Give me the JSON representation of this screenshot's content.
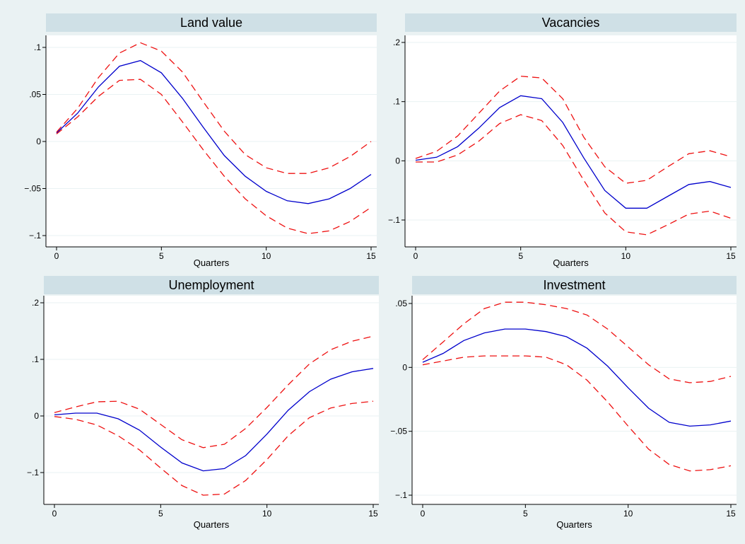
{
  "chart_data": [
    {
      "type": "line",
      "title": "Land value",
      "xlabel": "Quarters",
      "ylabel": "",
      "x": [
        0,
        1,
        2,
        3,
        4,
        5,
        6,
        7,
        8,
        9,
        10,
        11,
        12,
        13,
        14,
        15
      ],
      "xlim": [
        0,
        15
      ],
      "ylim": [
        -0.1,
        0.1
      ],
      "xticks": [
        0,
        5,
        10,
        15
      ],
      "xtick_labels": [
        "0",
        "5",
        "10",
        "15"
      ],
      "yticks": [
        -0.1,
        -0.05,
        0,
        0.05,
        0.1
      ],
      "ytick_labels": [
        "−.1",
        "−.05",
        "0",
        ".05",
        ".1"
      ],
      "grid": true,
      "series": [
        {
          "role": "estimate",
          "color": "#0000cc",
          "dash": "solid",
          "values": [
            0.009,
            0.03,
            0.058,
            0.08,
            0.086,
            0.073,
            0.046,
            0.015,
            -0.015,
            -0.037,
            -0.053,
            -0.063,
            -0.066,
            -0.061,
            -0.05,
            -0.035
          ]
        },
        {
          "role": "upper",
          "color": "#ee1111",
          "dash": "dashed",
          "values": [
            0.01,
            0.035,
            0.068,
            0.094,
            0.105,
            0.096,
            0.074,
            0.042,
            0.011,
            -0.014,
            -0.028,
            -0.034,
            -0.034,
            -0.028,
            -0.016,
            0
          ]
        },
        {
          "role": "lower",
          "color": "#ee1111",
          "dash": "dashed",
          "values": [
            0.008,
            0.026,
            0.048,
            0.065,
            0.066,
            0.05,
            0.021,
            -0.009,
            -0.037,
            -0.061,
            -0.079,
            -0.092,
            -0.098,
            -0.095,
            -0.085,
            -0.07
          ]
        }
      ]
    },
    {
      "type": "line",
      "title": "Vacancies",
      "xlabel": "Quarters",
      "ylabel": "",
      "x": [
        0,
        1,
        2,
        3,
        4,
        5,
        6,
        7,
        8,
        9,
        10,
        11,
        12,
        13,
        14,
        15
      ],
      "xlim": [
        0,
        15
      ],
      "ylim": [
        -0.1,
        0.2
      ],
      "xticks": [
        0,
        5,
        10,
        15
      ],
      "xtick_labels": [
        "0",
        "5",
        "10",
        "15"
      ],
      "yticks": [
        -0.1,
        0,
        0.1,
        0.2
      ],
      "ytick_labels": [
        "−.1",
        "0",
        ".1",
        ".2"
      ],
      "grid": true,
      "series": [
        {
          "role": "estimate",
          "color": "#0000cc",
          "dash": "solid",
          "values": [
            0.001,
            0.006,
            0.024,
            0.055,
            0.09,
            0.11,
            0.105,
            0.065,
            0.005,
            -0.05,
            -0.08,
            -0.08,
            -0.06,
            -0.04,
            -0.035,
            -0.045
          ]
        },
        {
          "role": "upper",
          "color": "#ee1111",
          "dash": "dashed",
          "values": [
            0.004,
            0.016,
            0.042,
            0.08,
            0.118,
            0.143,
            0.14,
            0.105,
            0.04,
            -0.01,
            -0.038,
            -0.033,
            -0.01,
            0.012,
            0.017,
            0.007
          ]
        },
        {
          "role": "lower",
          "color": "#ee1111",
          "dash": "dashed",
          "values": [
            -0.002,
            -0.002,
            0.01,
            0.033,
            0.063,
            0.078,
            0.068,
            0.026,
            -0.033,
            -0.088,
            -0.12,
            -0.125,
            -0.108,
            -0.09,
            -0.085,
            -0.097
          ]
        }
      ]
    },
    {
      "type": "line",
      "title": "Unemployment",
      "xlabel": "Quarters",
      "ylabel": "",
      "x": [
        0,
        1,
        2,
        3,
        4,
        5,
        6,
        7,
        8,
        9,
        10,
        11,
        12,
        13,
        14,
        15
      ],
      "xlim": [
        0,
        15
      ],
      "ylim": [
        -0.1,
        0.2
      ],
      "xticks": [
        0,
        5,
        10,
        15
      ],
      "xtick_labels": [
        "0",
        "5",
        "10",
        "15"
      ],
      "yticks": [
        -0.1,
        0,
        0.1,
        0.2
      ],
      "ytick_labels": [
        "−.1",
        "0",
        ".1",
        ".2"
      ],
      "grid": true,
      "series": [
        {
          "role": "estimate",
          "color": "#0000cc",
          "dash": "solid",
          "values": [
            0.002,
            0.005,
            0.005,
            -0.005,
            -0.025,
            -0.055,
            -0.083,
            -0.097,
            -0.093,
            -0.07,
            -0.032,
            0.01,
            0.043,
            0.065,
            0.078,
            0.084
          ]
        },
        {
          "role": "upper",
          "color": "#ee1111",
          "dash": "dashed",
          "values": [
            0.006,
            0.016,
            0.025,
            0.026,
            0.012,
            -0.015,
            -0.042,
            -0.056,
            -0.05,
            -0.022,
            0.015,
            0.055,
            0.092,
            0.117,
            0.132,
            0.141
          ]
        },
        {
          "role": "lower",
          "color": "#ee1111",
          "dash": "dashed",
          "values": [
            -0.001,
            -0.006,
            -0.016,
            -0.035,
            -0.06,
            -0.092,
            -0.123,
            -0.14,
            -0.138,
            -0.114,
            -0.077,
            -0.035,
            -0.003,
            0.014,
            0.022,
            0.026
          ]
        }
      ]
    },
    {
      "type": "line",
      "title": "Investment",
      "xlabel": "Quarters",
      "ylabel": "",
      "x": [
        0,
        1,
        2,
        3,
        4,
        5,
        6,
        7,
        8,
        9,
        10,
        11,
        12,
        13,
        14,
        15
      ],
      "xlim": [
        0,
        15
      ],
      "ylim": [
        -0.1,
        0.05
      ],
      "xticks": [
        0,
        5,
        10,
        15
      ],
      "xtick_labels": [
        "0",
        "5",
        "10",
        "15"
      ],
      "yticks": [
        -0.1,
        -0.05,
        0,
        0.05
      ],
      "ytick_labels": [
        "−.1",
        "−.05",
        "0",
        ".05"
      ],
      "grid": true,
      "series": [
        {
          "role": "estimate",
          "color": "#0000cc",
          "dash": "solid",
          "values": [
            0.004,
            0.011,
            0.021,
            0.027,
            0.03,
            0.03,
            0.028,
            0.024,
            0.015,
            0.001,
            -0.016,
            -0.032,
            -0.043,
            -0.046,
            -0.045,
            -0.042
          ]
        },
        {
          "role": "upper",
          "color": "#ee1111",
          "dash": "dashed",
          "values": [
            0.006,
            0.02,
            0.034,
            0.046,
            0.051,
            0.051,
            0.049,
            0.046,
            0.041,
            0.03,
            0.016,
            0.002,
            -0.009,
            -0.012,
            -0.011,
            -0.007
          ]
        },
        {
          "role": "lower",
          "color": "#ee1111",
          "dash": "dashed",
          "values": [
            0.002,
            0.005,
            0.008,
            0.009,
            0.009,
            0.009,
            0.008,
            0.002,
            -0.01,
            -0.027,
            -0.046,
            -0.064,
            -0.076,
            -0.081,
            -0.08,
            -0.077
          ]
        }
      ]
    }
  ]
}
